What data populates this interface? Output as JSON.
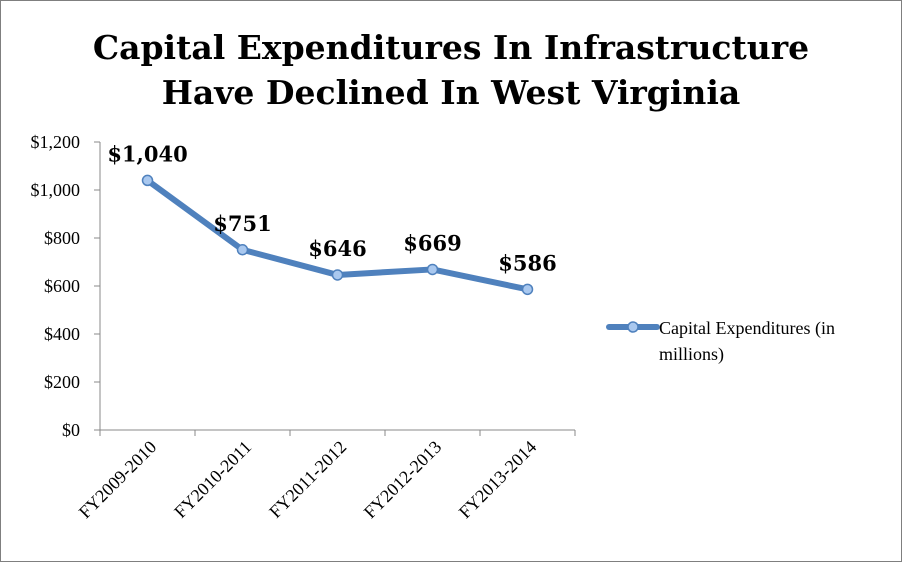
{
  "chart_data": {
    "type": "line",
    "title_lines": [
      "Capital Expenditures In Infrastructure",
      "Have Declined In West Virginia"
    ],
    "categories": [
      "FY2009-2010",
      "FY2010-2011",
      "FY2011-2012",
      "FY2012-2013",
      "FY2013-2014"
    ],
    "series": [
      {
        "name": "Capital Expenditures (in millions)",
        "legend_lines": [
          "Capital Expenditures (in",
          "millions)"
        ],
        "values": [
          1040,
          751,
          646,
          669,
          586
        ],
        "data_labels": [
          "$1,040",
          "$751",
          "$646",
          "$669",
          "$586"
        ],
        "color": "#4f81bd"
      }
    ],
    "y_ticks": [
      0,
      200,
      400,
      600,
      800,
      1000,
      1200
    ],
    "y_tick_labels": [
      "$0",
      "$200",
      "$400",
      "$600",
      "$800",
      "$1,000",
      "$1,200"
    ],
    "ylim": [
      0,
      1200
    ],
    "xlabel": "",
    "ylabel": "",
    "grid": false,
    "legend_position": "right"
  }
}
